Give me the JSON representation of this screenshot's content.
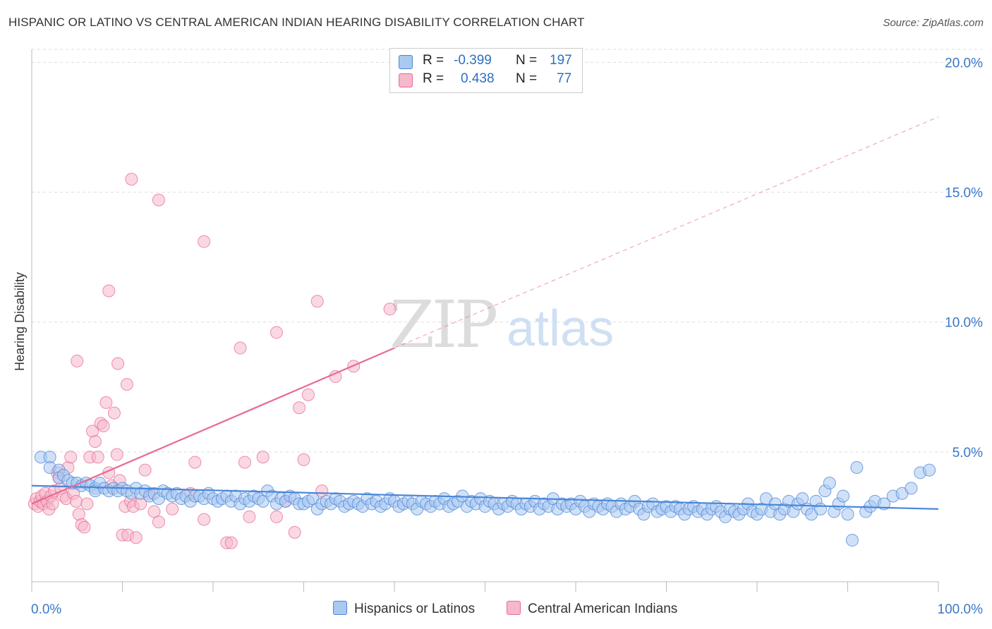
{
  "title": "HISPANIC OR LATINO VS CENTRAL AMERICAN INDIAN HEARING DISABILITY CORRELATION CHART",
  "source": "Source: ZipAtlas.com",
  "watermark": {
    "zip": "ZIP",
    "atlas": "atlas"
  },
  "legend": {
    "rows": [
      {
        "r_label": "R =",
        "r_value": "-0.399",
        "n_label": "N =",
        "n_value": "197",
        "color": "#a9c9f0"
      },
      {
        "r_label": "R =",
        "r_value": "0.438",
        "n_label": "N =",
        "n_value": "77",
        "color": "#f6b8cb"
      }
    ]
  },
  "bottom_legend": [
    {
      "label": "Hispanics or Latinos",
      "color": "#a9c9f0"
    },
    {
      "label": "Central American Indians",
      "color": "#f6b8cb"
    }
  ],
  "chart_data": {
    "type": "scatter",
    "ylabel": "Hearing Disability",
    "xlim": [
      0,
      100
    ],
    "ylim": [
      0,
      20.5
    ],
    "x_tick_labels": [
      "0.0%",
      "100.0%"
    ],
    "y_ticks": [
      5,
      10,
      15,
      20
    ],
    "y_tick_labels": [
      "5.0%",
      "10.0%",
      "15.0%",
      "20.0%"
    ],
    "grid": true,
    "series": [
      {
        "name": "Hispanics or Latinos",
        "color": "#4a86d8",
        "fill": "#a9c9f0",
        "trend": {
          "x0": 0,
          "y0": 3.7,
          "x1": 100,
          "y1": 2.8
        },
        "points": [
          [
            1,
            4.8
          ],
          [
            2,
            4.8
          ],
          [
            2,
            4.4
          ],
          [
            3,
            4.3
          ],
          [
            3,
            4.0
          ],
          [
            3.5,
            4.1
          ],
          [
            4,
            3.9
          ],
          [
            4.5,
            3.8
          ],
          [
            5,
            3.8
          ],
          [
            5.5,
            3.7
          ],
          [
            6,
            3.8
          ],
          [
            6.5,
            3.7
          ],
          [
            7,
            3.6
          ],
          [
            7,
            3.5
          ],
          [
            7.5,
            3.8
          ],
          [
            8,
            3.6
          ],
          [
            8.5,
            3.5
          ],
          [
            9,
            3.6
          ],
          [
            9.5,
            3.5
          ],
          [
            10,
            3.6
          ],
          [
            10.5,
            3.5
          ],
          [
            11,
            3.4
          ],
          [
            11.5,
            3.6
          ],
          [
            12,
            3.4
          ],
          [
            12.5,
            3.5
          ],
          [
            13,
            3.3
          ],
          [
            13.5,
            3.4
          ],
          [
            14,
            3.2
          ],
          [
            14.5,
            3.5
          ],
          [
            15,
            3.4
          ],
          [
            15.5,
            3.3
          ],
          [
            16,
            3.4
          ],
          [
            16.5,
            3.2
          ],
          [
            17,
            3.3
          ],
          [
            17.5,
            3.1
          ],
          [
            18,
            3.3
          ],
          [
            18.5,
            3.3
          ],
          [
            19,
            3.2
          ],
          [
            19.5,
            3.4
          ],
          [
            20,
            3.2
          ],
          [
            20.5,
            3.1
          ],
          [
            21,
            3.2
          ],
          [
            21.5,
            3.3
          ],
          [
            22,
            3.1
          ],
          [
            22.5,
            3.3
          ],
          [
            23,
            3.0
          ],
          [
            23.5,
            3.2
          ],
          [
            24,
            3.1
          ],
          [
            24.5,
            3.3
          ],
          [
            25,
            3.2
          ],
          [
            25.5,
            3.1
          ],
          [
            26,
            3.5
          ],
          [
            26.5,
            3.3
          ],
          [
            27,
            3.0
          ],
          [
            27.5,
            3.2
          ],
          [
            28,
            3.1
          ],
          [
            28.5,
            3.3
          ],
          [
            29,
            3.2
          ],
          [
            29.5,
            3.0
          ],
          [
            30,
            3.0
          ],
          [
            30.5,
            3.1
          ],
          [
            31,
            3.2
          ],
          [
            31.5,
            2.8
          ],
          [
            32,
            3.0
          ],
          [
            32.5,
            3.1
          ],
          [
            33,
            3.0
          ],
          [
            33.5,
            3.2
          ],
          [
            34,
            3.1
          ],
          [
            34.5,
            2.9
          ],
          [
            35,
            3.0
          ],
          [
            35.5,
            3.1
          ],
          [
            36,
            3.0
          ],
          [
            36.5,
            2.9
          ],
          [
            37,
            3.2
          ],
          [
            37.5,
            3.0
          ],
          [
            38,
            3.1
          ],
          [
            38.5,
            2.9
          ],
          [
            39,
            3.0
          ],
          [
            39.5,
            3.2
          ],
          [
            40,
            3.1
          ],
          [
            40.5,
            2.9
          ],
          [
            41,
            3.0
          ],
          [
            41.5,
            3.1
          ],
          [
            42,
            3.0
          ],
          [
            42.5,
            2.8
          ],
          [
            43,
            3.1
          ],
          [
            43.5,
            3.0
          ],
          [
            44,
            2.9
          ],
          [
            44.5,
            3.1
          ],
          [
            45,
            3.0
          ],
          [
            45.5,
            3.2
          ],
          [
            46,
            2.9
          ],
          [
            46.5,
            3.0
          ],
          [
            47,
            3.1
          ],
          [
            47.5,
            3.3
          ],
          [
            48,
            2.9
          ],
          [
            48.5,
            3.1
          ],
          [
            49,
            3.0
          ],
          [
            49.5,
            3.2
          ],
          [
            50,
            2.9
          ],
          [
            50.5,
            3.1
          ],
          [
            51,
            3.0
          ],
          [
            51.5,
            2.8
          ],
          [
            52,
            3.0
          ],
          [
            52.5,
            2.9
          ],
          [
            53,
            3.1
          ],
          [
            53.5,
            3.0
          ],
          [
            54,
            2.8
          ],
          [
            54.5,
            3.0
          ],
          [
            55,
            2.9
          ],
          [
            55.5,
            3.1
          ],
          [
            56,
            2.8
          ],
          [
            56.5,
            3.0
          ],
          [
            57,
            2.9
          ],
          [
            57.5,
            3.2
          ],
          [
            58,
            2.8
          ],
          [
            58.5,
            3.0
          ],
          [
            59,
            2.9
          ],
          [
            59.5,
            3.0
          ],
          [
            60,
            2.8
          ],
          [
            60.5,
            3.1
          ],
          [
            61,
            2.9
          ],
          [
            61.5,
            2.7
          ],
          [
            62,
            3.0
          ],
          [
            62.5,
            2.9
          ],
          [
            63,
            2.8
          ],
          [
            63.5,
            3.0
          ],
          [
            64,
            2.9
          ],
          [
            64.5,
            2.7
          ],
          [
            65,
            3.0
          ],
          [
            65.5,
            2.8
          ],
          [
            66,
            2.9
          ],
          [
            66.5,
            3.1
          ],
          [
            67,
            2.8
          ],
          [
            67.5,
            2.6
          ],
          [
            68,
            2.9
          ],
          [
            68.5,
            3.0
          ],
          [
            69,
            2.7
          ],
          [
            69.5,
            2.8
          ],
          [
            70,
            2.9
          ],
          [
            70.5,
            2.7
          ],
          [
            71,
            2.9
          ],
          [
            71.5,
            2.8
          ],
          [
            72,
            2.6
          ],
          [
            72.5,
            2.8
          ],
          [
            73,
            2.9
          ],
          [
            73.5,
            2.7
          ],
          [
            74,
            2.8
          ],
          [
            74.5,
            2.6
          ],
          [
            75,
            2.8
          ],
          [
            75.5,
            2.9
          ],
          [
            76,
            2.7
          ],
          [
            76.5,
            2.5
          ],
          [
            77,
            2.8
          ],
          [
            77.5,
            2.7
          ],
          [
            78,
            2.6
          ],
          [
            78.5,
            2.8
          ],
          [
            79,
            3.0
          ],
          [
            79.5,
            2.7
          ],
          [
            80,
            2.6
          ],
          [
            80.5,
            2.8
          ],
          [
            81,
            3.2
          ],
          [
            81.5,
            2.7
          ],
          [
            82,
            3.0
          ],
          [
            82.5,
            2.6
          ],
          [
            83,
            2.8
          ],
          [
            83.5,
            3.1
          ],
          [
            84,
            2.7
          ],
          [
            84.5,
            3.0
          ],
          [
            85,
            3.2
          ],
          [
            85.5,
            2.8
          ],
          [
            86,
            2.6
          ],
          [
            86.5,
            3.1
          ],
          [
            87,
            2.8
          ],
          [
            87.5,
            3.5
          ],
          [
            88,
            3.8
          ],
          [
            88.5,
            2.7
          ],
          [
            89,
            3.0
          ],
          [
            89.5,
            3.3
          ],
          [
            90,
            2.6
          ],
          [
            90.5,
            1.6
          ],
          [
            91,
            4.4
          ],
          [
            92,
            2.7
          ],
          [
            92.5,
            2.9
          ],
          [
            93,
            3.1
          ],
          [
            94,
            3.0
          ],
          [
            95,
            3.3
          ],
          [
            96,
            3.4
          ],
          [
            97,
            3.6
          ],
          [
            98,
            4.2
          ],
          [
            99,
            4.3
          ]
        ]
      },
      {
        "name": "Central American Indians",
        "color": "#e86a94",
        "fill": "#f6b8cb",
        "trend": {
          "x0": 0,
          "y0": 3.0,
          "x1": 40,
          "y1": 9.0
        },
        "trend_dashed": {
          "x0": 40,
          "y0": 9.0,
          "x1": 100,
          "y1": 17.9
        },
        "points": [
          [
            0.3,
            3.0
          ],
          [
            0.5,
            3.2
          ],
          [
            0.7,
            2.9
          ],
          [
            0.9,
            3.1
          ],
          [
            1.1,
            3.3
          ],
          [
            1.3,
            3.0
          ],
          [
            1.5,
            3.4
          ],
          [
            1.7,
            3.1
          ],
          [
            1.9,
            2.8
          ],
          [
            2.1,
            3.3
          ],
          [
            2.3,
            3.0
          ],
          [
            2.5,
            3.5
          ],
          [
            2.8,
            4.2
          ],
          [
            3.0,
            4.0
          ],
          [
            3.2,
            3.6
          ],
          [
            3.5,
            3.3
          ],
          [
            3.8,
            3.2
          ],
          [
            4.0,
            4.4
          ],
          [
            4.3,
            4.8
          ],
          [
            4.6,
            3.4
          ],
          [
            4.9,
            3.1
          ],
          [
            5.2,
            2.6
          ],
          [
            5.5,
            2.2
          ],
          [
            5.8,
            2.1
          ],
          [
            6.1,
            3.0
          ],
          [
            6.4,
            4.8
          ],
          [
            6.7,
            5.8
          ],
          [
            7.0,
            5.4
          ],
          [
            7.3,
            4.8
          ],
          [
            7.6,
            6.1
          ],
          [
            7.9,
            6.0
          ],
          [
            8.2,
            6.9
          ],
          [
            8.5,
            4.2
          ],
          [
            8.8,
            3.7
          ],
          [
            9.1,
            6.5
          ],
          [
            9.4,
            4.9
          ],
          [
            9.7,
            3.9
          ],
          [
            10.0,
            1.8
          ],
          [
            10.3,
            2.9
          ],
          [
            10.6,
            1.8
          ],
          [
            10.9,
            3.1
          ],
          [
            11.2,
            2.9
          ],
          [
            11.5,
            1.7
          ],
          [
            12.0,
            3.0
          ],
          [
            12.5,
            4.3
          ],
          [
            13.0,
            3.4
          ],
          [
            13.5,
            2.7
          ],
          [
            14.0,
            2.3
          ],
          [
            15.5,
            2.8
          ],
          [
            17.5,
            3.4
          ],
          [
            18.0,
            4.6
          ],
          [
            19.0,
            2.4
          ],
          [
            21.5,
            1.5
          ],
          [
            22.0,
            1.5
          ],
          [
            23.5,
            4.6
          ],
          [
            24.0,
            2.5
          ],
          [
            25.5,
            4.8
          ],
          [
            27.0,
            2.5
          ],
          [
            28.0,
            3.1
          ],
          [
            29.0,
            1.9
          ],
          [
            30.0,
            4.7
          ],
          [
            32.0,
            3.5
          ],
          [
            5.0,
            8.5
          ],
          [
            8.5,
            11.2
          ],
          [
            9.5,
            8.4
          ],
          [
            10.5,
            7.6
          ],
          [
            11.0,
            15.5
          ],
          [
            14.0,
            14.7
          ],
          [
            19.0,
            13.1
          ],
          [
            23.0,
            9.0
          ],
          [
            27.0,
            9.6
          ],
          [
            29.5,
            6.7
          ],
          [
            30.5,
            7.2
          ],
          [
            31.5,
            10.8
          ],
          [
            33.5,
            7.9
          ],
          [
            35.5,
            8.3
          ],
          [
            39.5,
            10.5
          ]
        ]
      }
    ]
  }
}
